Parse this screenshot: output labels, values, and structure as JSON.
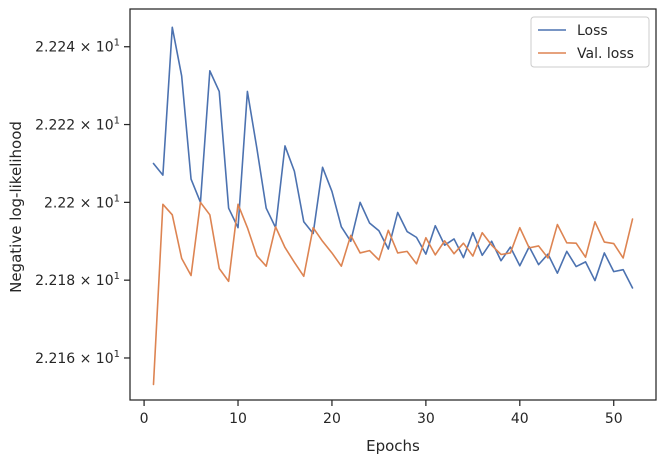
{
  "chart_data": {
    "type": "line",
    "title": "",
    "xlabel": "Epochs",
    "ylabel": "Negative log-likelihood",
    "xlim": [
      -1.5,
      54.5
    ],
    "ylim": [
      22.1492,
      22.2497
    ],
    "yscale": "log",
    "grid": false,
    "legend_position": "top-right",
    "x_ticks": [
      0,
      10,
      20,
      30,
      40,
      50
    ],
    "y_ticks": [
      {
        "value": 22.16,
        "mantissa": "2.216"
      },
      {
        "value": 22.18,
        "mantissa": "2.218"
      },
      {
        "value": 22.2,
        "mantissa": "2.22"
      },
      {
        "value": 22.22,
        "mantissa": "2.222"
      },
      {
        "value": 22.24,
        "mantissa": "2.224"
      }
    ],
    "y_tick_base": "10",
    "y_tick_exp": "1",
    "x": [
      1,
      2,
      3,
      4,
      5,
      6,
      7,
      8,
      9,
      10,
      11,
      12,
      13,
      14,
      15,
      16,
      17,
      18,
      19,
      20,
      21,
      22,
      23,
      24,
      25,
      26,
      27,
      28,
      29,
      30,
      31,
      32,
      33,
      34,
      35,
      36,
      37,
      38,
      39,
      40,
      41,
      42,
      43,
      44,
      45,
      46,
      47,
      48,
      49,
      50,
      51,
      52
    ],
    "series": [
      {
        "name": "Loss",
        "color": "#4c72b0",
        "values": [
          22.21,
          22.207,
          22.245,
          22.2325,
          22.206,
          22.2,
          22.2338,
          22.2285,
          22.1985,
          22.1935,
          22.2285,
          22.214,
          22.1985,
          22.1935,
          22.2145,
          22.208,
          22.195,
          22.192,
          22.209,
          22.2028,
          22.1937,
          22.19,
          22.2,
          22.1947,
          22.1927,
          22.188,
          22.1974,
          22.1925,
          22.191,
          22.1867,
          22.194,
          22.189,
          22.1906,
          22.1858,
          22.1922,
          22.1864,
          22.19,
          22.185,
          22.1885,
          22.1837,
          22.1886,
          22.184,
          22.1867,
          22.1818,
          22.1874,
          22.1835,
          22.1847,
          22.1799,
          22.187,
          22.1822,
          22.1827,
          22.178
        ]
      },
      {
        "name": "Val. loss",
        "color": "#dd8452",
        "values": [
          22.1532,
          22.1995,
          22.1968,
          22.1856,
          22.1812,
          22.2,
          22.1968,
          22.183,
          22.1797,
          22.1995,
          22.1935,
          22.1863,
          22.1836,
          22.1937,
          22.1884,
          22.1846,
          22.181,
          22.1935,
          22.19,
          22.187,
          22.1836,
          22.1915,
          22.187,
          22.1876,
          22.1852,
          22.1928,
          22.187,
          22.1874,
          22.1842,
          22.1909,
          22.1865,
          22.1901,
          22.1868,
          22.1895,
          22.1862,
          22.1922,
          22.189,
          22.1866,
          22.187,
          22.1935,
          22.1883,
          22.1888,
          22.1857,
          22.1943,
          22.1896,
          22.1895,
          22.1859,
          22.195,
          22.1898,
          22.1894,
          22.1857,
          22.1957
        ]
      }
    ]
  }
}
